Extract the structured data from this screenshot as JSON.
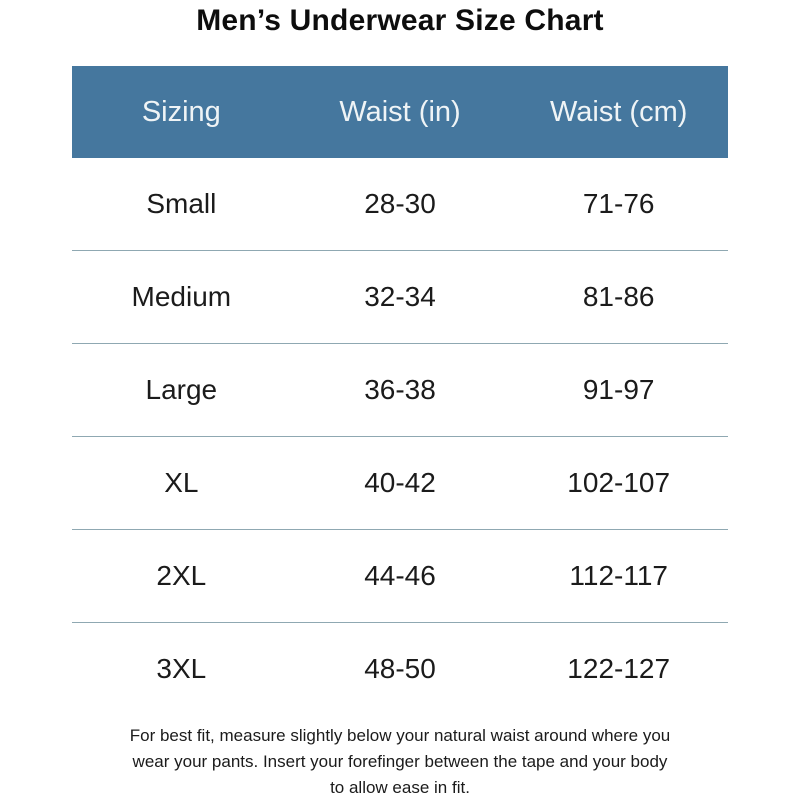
{
  "page": {
    "title": "Men’s Underwear Size Chart",
    "footnote_lines": [
      "For best fit, measure slightly below your natural waist around where you",
      "wear your pants. Insert your forefinger between the tape and your body",
      "to allow ease in fit."
    ]
  },
  "table": {
    "headers": [
      "Sizing",
      "Waist (in)",
      "Waist (cm)"
    ],
    "rows": [
      [
        "Small",
        "28-30",
        "71-76"
      ],
      [
        "Medium",
        "32-34",
        "81-86"
      ],
      [
        "Large",
        "36-38",
        "91-97"
      ],
      [
        "XL",
        "40-42",
        "102-107"
      ],
      [
        "2XL",
        "44-46",
        "112-117"
      ],
      [
        "3XL",
        "48-50",
        "122-127"
      ]
    ]
  },
  "colors": {
    "header_bg": "#45779E",
    "header_text": "#EFF4F6",
    "divider": "#8FA8B2",
    "body_text": "#1B1B1B",
    "title_text": "#0D0D0D",
    "background": "#FFFFFF"
  },
  "chart_data": {
    "type": "table",
    "title": "Men’s Underwear Size Chart",
    "columns": [
      "Sizing",
      "Waist (in)",
      "Waist (cm)"
    ],
    "rows": [
      [
        "Small",
        "28-30",
        "71-76"
      ],
      [
        "Medium",
        "32-34",
        "81-86"
      ],
      [
        "Large",
        "36-38",
        "91-97"
      ],
      [
        "XL",
        "40-42",
        "102-107"
      ],
      [
        "2XL",
        "44-46",
        "112-117"
      ],
      [
        "3XL",
        "48-50",
        "122-127"
      ]
    ],
    "note": "For best fit, measure slightly below your natural waist around where you wear your pants. Insert your forefinger between the tape and your body to allow ease in fit.",
    "layout_hints": {
      "header_background": "#45779E",
      "row_divider": "thin horizontal rules between data rows",
      "alignment": "all columns centered, three equal-width columns"
    }
  }
}
